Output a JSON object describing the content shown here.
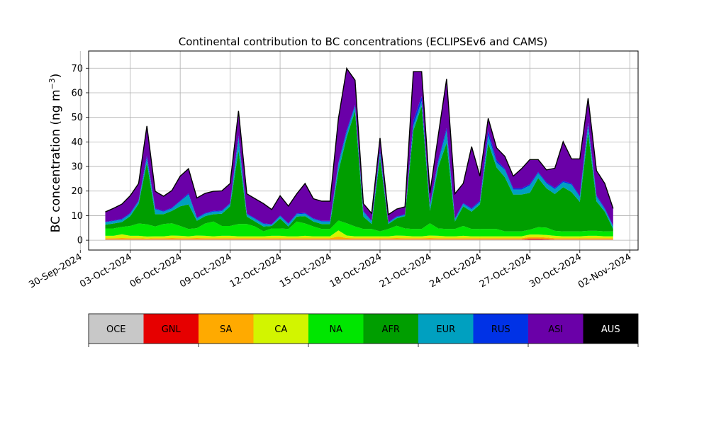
{
  "chart_data": {
    "type": "area",
    "title": "Continental contribution to BC concentrations (ECLIPSEv6 and CAMS)",
    "ylabel": "BC concentration (ng m",
    "ylabel_sup": "−3",
    "ylabel_close": ")",
    "xlabel": "",
    "stacked": true,
    "grid": true,
    "ylim": [
      -4,
      77
    ],
    "xlim": [
      "2024-09-30T12:00",
      "2024-11-02T12:00"
    ],
    "yticks": [
      0,
      10,
      20,
      30,
      40,
      50,
      60,
      70
    ],
    "xticks": [
      {
        "date": "2024-09-30",
        "label": "30-Sep-2024"
      },
      {
        "date": "2024-10-03",
        "label": "03-Oct-2024"
      },
      {
        "date": "2024-10-06",
        "label": "06-Oct-2024"
      },
      {
        "date": "2024-10-09",
        "label": "09-Oct-2024"
      },
      {
        "date": "2024-10-12",
        "label": "12-Oct-2024"
      },
      {
        "date": "2024-10-15",
        "label": "15-Oct-2024"
      },
      {
        "date": "2024-10-18",
        "label": "18-Oct-2024"
      },
      {
        "date": "2024-10-21",
        "label": "21-Oct-2024"
      },
      {
        "date": "2024-10-24",
        "label": "24-Oct-2024"
      },
      {
        "date": "2024-10-27",
        "label": "27-Oct-2024"
      },
      {
        "date": "2024-10-30",
        "label": "30-Oct-2024"
      },
      {
        "date": "2024-11-02",
        "label": "02-Nov-2024"
      }
    ],
    "x": [
      "2024-10-01T12:00",
      "2024-10-02T00:00",
      "2024-10-02T12:00",
      "2024-10-03T00:00",
      "2024-10-03T12:00",
      "2024-10-04T00:00",
      "2024-10-04T12:00",
      "2024-10-05T00:00",
      "2024-10-05T12:00",
      "2024-10-06T00:00",
      "2024-10-06T12:00",
      "2024-10-07T00:00",
      "2024-10-07T12:00",
      "2024-10-08T00:00",
      "2024-10-08T12:00",
      "2024-10-09T00:00",
      "2024-10-09T12:00",
      "2024-10-10T00:00",
      "2024-10-10T12:00",
      "2024-10-11T00:00",
      "2024-10-11T12:00",
      "2024-10-12T00:00",
      "2024-10-12T12:00",
      "2024-10-13T00:00",
      "2024-10-13T12:00",
      "2024-10-14T00:00",
      "2024-10-14T12:00",
      "2024-10-15T00:00",
      "2024-10-15T12:00",
      "2024-10-16T00:00",
      "2024-10-16T12:00",
      "2024-10-17T00:00",
      "2024-10-17T12:00",
      "2024-10-18T00:00",
      "2024-10-18T12:00",
      "2024-10-19T00:00",
      "2024-10-19T12:00",
      "2024-10-20T00:00",
      "2024-10-20T12:00",
      "2024-10-21T00:00",
      "2024-10-21T12:00",
      "2024-10-22T00:00",
      "2024-10-22T12:00",
      "2024-10-23T00:00",
      "2024-10-23T12:00",
      "2024-10-24T00:00",
      "2024-10-24T12:00",
      "2024-10-25T00:00",
      "2024-10-25T12:00",
      "2024-10-26T00:00",
      "2024-10-26T12:00",
      "2024-10-27T00:00",
      "2024-10-27T12:00",
      "2024-10-28T00:00",
      "2024-10-28T12:00",
      "2024-10-29T00:00",
      "2024-10-29T12:00",
      "2024-10-30T00:00",
      "2024-10-30T12:00",
      "2024-10-31T00:00",
      "2024-10-31T12:00",
      "2024-11-01T00:00"
    ],
    "series": [
      {
        "name": "OCE",
        "color": "#c8c8c8",
        "values": [
          0.2,
          0.2,
          0.2,
          0.2,
          0.2,
          0.2,
          0.2,
          0.2,
          0.2,
          0.2,
          0.2,
          0.2,
          0.2,
          0.2,
          0.2,
          0.2,
          0.2,
          0.2,
          0.2,
          0.2,
          0.2,
          0.2,
          0.2,
          0.2,
          0.2,
          0.2,
          0.2,
          0.2,
          0.2,
          0.2,
          0.2,
          0.2,
          0.2,
          0.2,
          0.2,
          0.2,
          0.2,
          0.2,
          0.2,
          0.2,
          0.2,
          0.2,
          0.2,
          0.2,
          0.2,
          0.2,
          0.2,
          0.2,
          0.2,
          0.2,
          0.2,
          0.2,
          0.2,
          0.2,
          0.2,
          0.2,
          0.2,
          0.2,
          0.2,
          0.2,
          0.2,
          0.2
        ]
      },
      {
        "name": "GNL",
        "color": "#e60000",
        "values": [
          0.1,
          0.1,
          0.1,
          0.1,
          0.1,
          0.1,
          0.1,
          0.1,
          0.1,
          0.1,
          0.1,
          0.1,
          0.1,
          0.1,
          0.1,
          0.1,
          0.1,
          0.1,
          0.1,
          0.1,
          0.1,
          0.1,
          0.1,
          0.1,
          0.1,
          0.1,
          0.1,
          0.1,
          0.1,
          0.1,
          0.1,
          0.1,
          0.1,
          0.1,
          0.1,
          0.1,
          0.1,
          0.1,
          0.1,
          0.1,
          0.1,
          0.1,
          0.1,
          0.1,
          0.1,
          0.1,
          0.1,
          0.1,
          0.1,
          0.1,
          0.1,
          0.5,
          0.5,
          0.3,
          0.1,
          0.1,
          0.1,
          0.1,
          0.1,
          0.1,
          0.1,
          0.1
        ]
      },
      {
        "name": "SA",
        "color": "#ffaa00",
        "values": [
          0.5,
          0.5,
          0.6,
          0.5,
          0.5,
          0.4,
          0.5,
          0.5,
          0.6,
          0.5,
          0.5,
          0.6,
          0.5,
          0.5,
          0.5,
          0.5,
          0.5,
          0.5,
          0.5,
          0.5,
          0.5,
          0.5,
          0.5,
          0.5,
          0.5,
          0.5,
          0.5,
          0.5,
          1.2,
          0.6,
          0.5,
          0.5,
          0.5,
          0.5,
          0.5,
          0.6,
          0.5,
          0.5,
          0.5,
          0.6,
          0.5,
          0.5,
          0.5,
          0.5,
          0.5,
          0.5,
          0.5,
          0.5,
          0.5,
          0.5,
          0.5,
          0.6,
          0.6,
          0.6,
          0.5,
          0.5,
          0.5,
          0.5,
          0.5,
          0.5,
          0.5,
          0.5
        ]
      },
      {
        "name": "CA",
        "color": "#d2f500",
        "values": [
          1.0,
          1.0,
          1.5,
          1.0,
          1.0,
          0.8,
          0.8,
          0.8,
          1.0,
          1.0,
          0.8,
          1.0,
          1.0,
          0.8,
          1.0,
          1.0,
          0.8,
          0.8,
          0.8,
          0.8,
          1.0,
          1.0,
          0.8,
          0.8,
          1.0,
          0.8,
          0.8,
          0.8,
          2.5,
          1.0,
          0.8,
          0.8,
          0.8,
          0.8,
          0.8,
          1.0,
          1.0,
          0.8,
          0.8,
          1.0,
          1.0,
          0.8,
          0.8,
          1.0,
          0.8,
          0.8,
          0.8,
          0.8,
          0.8,
          0.8,
          0.8,
          1.0,
          1.0,
          1.0,
          1.0,
          0.8,
          0.8,
          0.8,
          1.0,
          1.0,
          0.8,
          0.8
        ]
      },
      {
        "name": "NA",
        "color": "#00e600",
        "values": [
          3.0,
          3.0,
          3.0,
          4.0,
          5.0,
          5.0,
          4.0,
          5.0,
          5.0,
          4.0,
          3.0,
          3.0,
          5.0,
          6.0,
          4.0,
          4.0,
          5.0,
          5.0,
          4.0,
          2.0,
          3.0,
          3.0,
          3.0,
          6.0,
          5.0,
          4.0,
          3.0,
          3.0,
          4.0,
          5.0,
          4.0,
          3.0,
          3.0,
          2.0,
          3.0,
          4.0,
          3.0,
          3.0,
          3.0,
          5.0,
          3.0,
          3.0,
          3.0,
          4.0,
          3.0,
          3.0,
          3.0,
          3.0,
          2.0,
          2.0,
          2.0,
          2.0,
          3.0,
          3.0,
          2.0,
          2.0,
          2.0,
          2.0,
          2.0,
          2.0,
          2.0,
          2.0
        ]
      },
      {
        "name": "AFR",
        "color": "#009e00",
        "values": [
          1.5,
          2.0,
          2.0,
          4.0,
          8.0,
          25.0,
          5.0,
          4.0,
          5.0,
          8.0,
          10.0,
          3.0,
          3.0,
          3.0,
          5.0,
          8.0,
          30.0,
          3.0,
          2.0,
          2.0,
          1.0,
          4.0,
          1.0,
          2.0,
          3.0,
          2.0,
          2.0,
          2.0,
          20.0,
          35.0,
          47.0,
          5.0,
          2.0,
          30.0,
          2.0,
          3.0,
          5.0,
          40.0,
          50.0,
          5.0,
          25.0,
          35.0,
          3.0,
          8.0,
          7.0,
          10.0,
          35.0,
          25.0,
          22.0,
          15.0,
          15.0,
          15.0,
          20.0,
          16.0,
          15.0,
          18.0,
          16.0,
          12.0,
          40.0,
          12.0,
          8.0,
          1.0
        ]
      },
      {
        "name": "EUR",
        "color": "#00a0c0",
        "values": [
          1.0,
          1.0,
          1.0,
          1.0,
          1.0,
          2.0,
          2.0,
          1.0,
          1.0,
          2.0,
          4.0,
          1.0,
          1.0,
          1.0,
          1.0,
          1.0,
          5.0,
          1.0,
          1.0,
          1.0,
          0.5,
          1.0,
          1.0,
          1.0,
          1.0,
          1.0,
          1.0,
          1.0,
          3.0,
          2.0,
          2.0,
          2.0,
          1.0,
          2.0,
          0.5,
          0.5,
          0.5,
          2.0,
          2.0,
          2.0,
          2.0,
          5.0,
          1.0,
          1.0,
          1.0,
          1.0,
          3.0,
          2.0,
          3.0,
          2.0,
          2.0,
          3.0,
          2.0,
          2.0,
          2.0,
          2.0,
          3.0,
          2.0,
          3.0,
          2.0,
          1.0,
          1.0
        ]
      },
      {
        "name": "RUS",
        "color": "#0032e6",
        "values": [
          0.2,
          0.2,
          0.3,
          0.3,
          0.3,
          1.0,
          0.3,
          0.3,
          0.3,
          0.3,
          0.5,
          0.3,
          0.3,
          0.3,
          0.3,
          0.3,
          1.0,
          0.3,
          0.3,
          0.3,
          0.2,
          0.3,
          0.3,
          0.3,
          0.3,
          0.3,
          0.3,
          0.3,
          0.5,
          1.0,
          0.5,
          0.3,
          0.3,
          1.0,
          0.3,
          0.3,
          0.3,
          2.0,
          2.0,
          0.3,
          1.0,
          1.0,
          0.3,
          0.3,
          0.5,
          0.5,
          2.0,
          1.0,
          0.5,
          0.5,
          0.5,
          0.5,
          0.5,
          0.5,
          0.5,
          0.5,
          0.5,
          0.5,
          1.0,
          0.5,
          0.5,
          0.3
        ]
      },
      {
        "name": "ASI",
        "color": "#6a00a8",
        "values": [
          4.0,
          5.0,
          6.0,
          7.0,
          7.0,
          12.0,
          7.0,
          6.0,
          7.0,
          10.0,
          10.0,
          8.0,
          8.0,
          8.0,
          8.0,
          8.0,
          10.0,
          8.0,
          8.0,
          8.0,
          6.0,
          8.0,
          7.0,
          8.0,
          12.0,
          8.0,
          8.0,
          8.0,
          18.0,
          25.0,
          10.0,
          3.0,
          3.0,
          5.0,
          3.0,
          3.0,
          3.0,
          20.0,
          10.0,
          5.0,
          10.0,
          20.0,
          10.0,
          8.0,
          25.0,
          10.0,
          5.0,
          5.0,
          5.0,
          5.0,
          8.0,
          10.0,
          5.0,
          5.0,
          8.0,
          16.0,
          10.0,
          15.0,
          10.0,
          10.0,
          10.0,
          7.0
        ]
      },
      {
        "name": "AUS",
        "color": "#000000",
        "values": [
          0.0,
          0.0,
          0.0,
          0.0,
          0.0,
          0.0,
          0.0,
          0.0,
          0.0,
          0.0,
          0.0,
          0.0,
          0.0,
          0.0,
          0.0,
          0.0,
          0.0,
          0.0,
          0.0,
          0.0,
          0.0,
          0.0,
          0.0,
          0.0,
          0.0,
          0.0,
          0.0,
          0.0,
          0.0,
          0.0,
          0.0,
          0.0,
          0.0,
          0.0,
          0.0,
          0.0,
          0.0,
          0.0,
          0.0,
          0.0,
          0.0,
          0.0,
          0.0,
          0.0,
          0.0,
          0.0,
          0.0,
          0.0,
          0.0,
          0.0,
          0.0,
          0.0,
          0.0,
          0.0,
          0.0,
          0.0,
          0.0,
          0.0,
          0.0,
          0.0,
          0.0,
          0.0
        ]
      }
    ],
    "legend": {
      "placement": "bottom",
      "items": [
        {
          "label": "OCE",
          "color": "#c8c8c8",
          "text_color": "#000000"
        },
        {
          "label": "GNL",
          "color": "#e60000",
          "text_color": "#000000"
        },
        {
          "label": "SA",
          "color": "#ffaa00",
          "text_color": "#000000"
        },
        {
          "label": "CA",
          "color": "#d2f500",
          "text_color": "#000000"
        },
        {
          "label": "NA",
          "color": "#00e600",
          "text_color": "#000000"
        },
        {
          "label": "AFR",
          "color": "#009e00",
          "text_color": "#000000"
        },
        {
          "label": "EUR",
          "color": "#00a0c0",
          "text_color": "#000000"
        },
        {
          "label": "RUS",
          "color": "#0032e6",
          "text_color": "#000000"
        },
        {
          "label": "ASI",
          "color": "#6a00a8",
          "text_color": "#000000"
        },
        {
          "label": "AUS",
          "color": "#000000",
          "text_color": "#ffffff"
        }
      ]
    }
  }
}
